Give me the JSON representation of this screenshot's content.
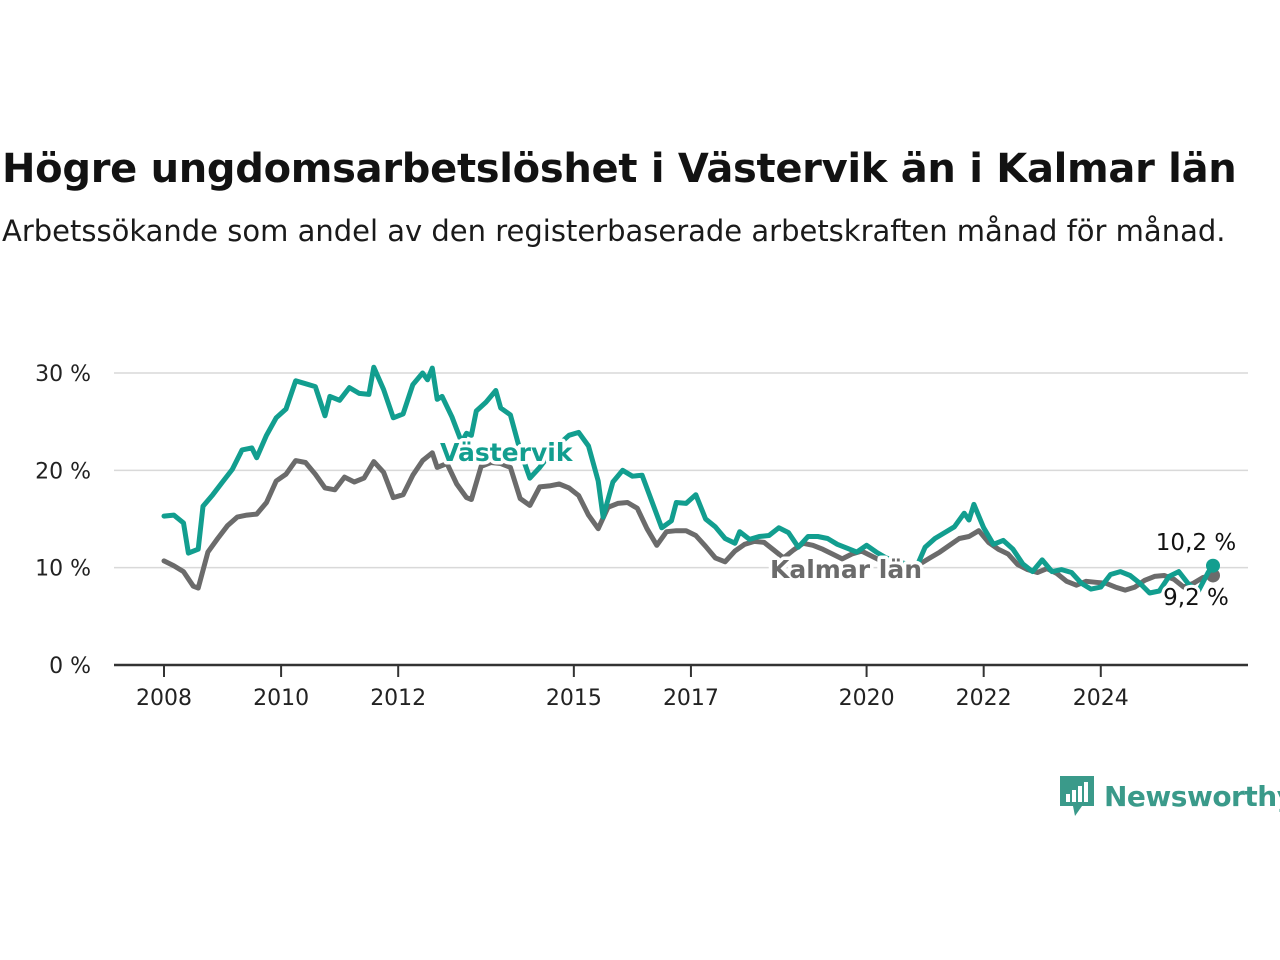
{
  "title": "Högre ungdomsarbetslöshet i Västervik än i Kalmar län",
  "subtitle": "Arbetssökande som andel av den registerbaserade arbetskraften månad för månad.",
  "brand": {
    "name": "Newsworthy",
    "color": "#3a9a8a"
  },
  "colors": {
    "vastervik": "#129e8f",
    "kalmar": "#6b6b6b",
    "grid": "#d9d9d9",
    "axis": "#333333"
  },
  "chart_data": {
    "type": "line",
    "title": "Högre ungdomsarbetslöshet i Västervik än i Kalmar län",
    "subtitle": "Arbetssökande som andel av den registerbaserade arbetskraften månad för månad.",
    "xlabel": "",
    "ylabel": "",
    "ylim": [
      0,
      30
    ],
    "xlim": [
      "2008-01",
      "2025-12"
    ],
    "grid": true,
    "y_ticks": [
      {
        "value": 0,
        "label": "0 %"
      },
      {
        "value": 10,
        "label": "10 %"
      },
      {
        "value": 20,
        "label": "20 %"
      },
      {
        "value": 30,
        "label": "30 %"
      }
    ],
    "x_ticks": [
      {
        "value": "2008-01",
        "label": "2008"
      },
      {
        "value": "2010-01",
        "label": "2010"
      },
      {
        "value": "2012-01",
        "label": "2012"
      },
      {
        "value": "2015-01",
        "label": "2015"
      },
      {
        "value": "2017-01",
        "label": "2017"
      },
      {
        "value": "2020-01",
        "label": "2020"
      },
      {
        "value": "2022-01",
        "label": "2022"
      },
      {
        "value": "2024-01",
        "label": "2024"
      }
    ],
    "series": [
      {
        "name": "Västervik",
        "color": "#129e8f",
        "end_label": "10,2 %",
        "points": [
          [
            "2008-01",
            15.3
          ],
          [
            "2008-03",
            15.4
          ],
          [
            "2008-05",
            14.6
          ],
          [
            "2008-06",
            11.5
          ],
          [
            "2008-08",
            11.9
          ],
          [
            "2008-09",
            16.3
          ],
          [
            "2008-11",
            17.5
          ],
          [
            "2009-01",
            18.8
          ],
          [
            "2009-03",
            20.1
          ],
          [
            "2009-05",
            22.1
          ],
          [
            "2009-07",
            22.3
          ],
          [
            "2009-08",
            21.3
          ],
          [
            "2009-10",
            23.6
          ],
          [
            "2009-12",
            25.4
          ],
          [
            "2010-02",
            26.3
          ],
          [
            "2010-04",
            29.2
          ],
          [
            "2010-06",
            28.9
          ],
          [
            "2010-08",
            28.6
          ],
          [
            "2010-10",
            25.6
          ],
          [
            "2010-11",
            27.6
          ],
          [
            "2011-01",
            27.2
          ],
          [
            "2011-03",
            28.5
          ],
          [
            "2011-05",
            27.9
          ],
          [
            "2011-07",
            27.8
          ],
          [
            "2011-08",
            30.6
          ],
          [
            "2011-10",
            28.3
          ],
          [
            "2011-12",
            25.4
          ],
          [
            "2012-02",
            25.8
          ],
          [
            "2012-04",
            28.8
          ],
          [
            "2012-06",
            30.0
          ],
          [
            "2012-07",
            29.3
          ],
          [
            "2012-08",
            30.5
          ],
          [
            "2012-09",
            27.3
          ],
          [
            "2012-10",
            27.6
          ],
          [
            "2012-12",
            25.5
          ],
          [
            "2013-02",
            22.9
          ],
          [
            "2013-03",
            23.8
          ],
          [
            "2013-04",
            23.6
          ],
          [
            "2013-05",
            26.1
          ],
          [
            "2013-07",
            27.0
          ],
          [
            "2013-09",
            28.2
          ],
          [
            "2013-10",
            26.4
          ],
          [
            "2013-12",
            25.7
          ],
          [
            "2014-02",
            22.0
          ],
          [
            "2014-04",
            19.2
          ],
          [
            "2014-06",
            20.3
          ],
          [
            "2014-08",
            21.6
          ],
          [
            "2014-10",
            22.7
          ],
          [
            "2014-12",
            23.6
          ],
          [
            "2015-02",
            23.9
          ],
          [
            "2015-04",
            22.5
          ],
          [
            "2015-06",
            18.9
          ],
          [
            "2015-07",
            15.2
          ],
          [
            "2015-09",
            18.8
          ],
          [
            "2015-11",
            20.0
          ],
          [
            "2016-01",
            19.4
          ],
          [
            "2016-03",
            19.5
          ],
          [
            "2016-05",
            16.8
          ],
          [
            "2016-07",
            14.1
          ],
          [
            "2016-09",
            14.8
          ],
          [
            "2016-10",
            16.7
          ],
          [
            "2016-12",
            16.6
          ],
          [
            "2017-02",
            17.5
          ],
          [
            "2017-04",
            15.0
          ],
          [
            "2017-06",
            14.2
          ],
          [
            "2017-08",
            13.0
          ],
          [
            "2017-10",
            12.5
          ],
          [
            "2017-11",
            13.7
          ],
          [
            "2018-01",
            12.9
          ],
          [
            "2018-03",
            13.2
          ],
          [
            "2018-05",
            13.3
          ],
          [
            "2018-07",
            14.1
          ],
          [
            "2018-09",
            13.6
          ],
          [
            "2018-11",
            12.1
          ],
          [
            "2019-01",
            13.2
          ],
          [
            "2019-03",
            13.2
          ],
          [
            "2019-05",
            13.0
          ],
          [
            "2019-07",
            12.4
          ],
          [
            "2019-09",
            12.0
          ],
          [
            "2019-11",
            11.6
          ],
          [
            "2020-01",
            12.3
          ],
          [
            "2020-03",
            11.6
          ],
          [
            "2020-05",
            11.0
          ],
          [
            "2020-07",
            10.7
          ],
          [
            "2020-09",
            10.4
          ],
          [
            "2020-11",
            9.8
          ],
          [
            "2021-01",
            12.1
          ],
          [
            "2021-03",
            13.0
          ],
          [
            "2021-05",
            13.6
          ],
          [
            "2021-07",
            14.2
          ],
          [
            "2021-09",
            15.6
          ],
          [
            "2021-10",
            14.9
          ],
          [
            "2021-11",
            16.5
          ],
          [
            "2022-01",
            14.1
          ],
          [
            "2022-03",
            12.4
          ],
          [
            "2022-05",
            12.8
          ],
          [
            "2022-07",
            11.9
          ],
          [
            "2022-09",
            10.4
          ],
          [
            "2022-11",
            9.6
          ],
          [
            "2023-01",
            10.8
          ],
          [
            "2023-03",
            9.6
          ],
          [
            "2023-05",
            9.8
          ],
          [
            "2023-07",
            9.5
          ],
          [
            "2023-09",
            8.4
          ],
          [
            "2023-11",
            7.8
          ],
          [
            "2024-01",
            8.0
          ],
          [
            "2024-03",
            9.3
          ],
          [
            "2024-05",
            9.6
          ],
          [
            "2024-07",
            9.2
          ],
          [
            "2024-09",
            8.4
          ],
          [
            "2024-11",
            7.4
          ],
          [
            "2025-01",
            7.6
          ],
          [
            "2025-03",
            9.1
          ],
          [
            "2025-05",
            9.6
          ],
          [
            "2025-07",
            8.3
          ],
          [
            "2025-09",
            7.6
          ],
          [
            "2025-11",
            9.5
          ],
          [
            "2025-12",
            10.2
          ]
        ]
      },
      {
        "name": "Kalmar län",
        "color": "#6b6b6b",
        "end_label": "9,2 %",
        "points": [
          [
            "2008-01",
            10.7
          ],
          [
            "2008-03",
            10.2
          ],
          [
            "2008-05",
            9.6
          ],
          [
            "2008-07",
            8.1
          ],
          [
            "2008-08",
            7.9
          ],
          [
            "2008-10",
            11.6
          ],
          [
            "2008-12",
            13.0
          ],
          [
            "2009-02",
            14.3
          ],
          [
            "2009-04",
            15.2
          ],
          [
            "2009-06",
            15.4
          ],
          [
            "2009-08",
            15.5
          ],
          [
            "2009-10",
            16.7
          ],
          [
            "2009-12",
            18.9
          ],
          [
            "2010-02",
            19.6
          ],
          [
            "2010-04",
            21.0
          ],
          [
            "2010-06",
            20.8
          ],
          [
            "2010-08",
            19.6
          ],
          [
            "2010-10",
            18.2
          ],
          [
            "2010-12",
            18.0
          ],
          [
            "2011-02",
            19.3
          ],
          [
            "2011-04",
            18.8
          ],
          [
            "2011-06",
            19.2
          ],
          [
            "2011-08",
            20.9
          ],
          [
            "2011-10",
            19.8
          ],
          [
            "2011-12",
            17.2
          ],
          [
            "2012-02",
            17.5
          ],
          [
            "2012-04",
            19.5
          ],
          [
            "2012-06",
            21.0
          ],
          [
            "2012-08",
            21.8
          ],
          [
            "2012-09",
            20.3
          ],
          [
            "2012-11",
            20.7
          ],
          [
            "2013-01",
            18.6
          ],
          [
            "2013-03",
            17.2
          ],
          [
            "2013-04",
            17.0
          ],
          [
            "2013-06",
            20.4
          ],
          [
            "2013-08",
            20.8
          ],
          [
            "2013-10",
            20.7
          ],
          [
            "2013-12",
            20.3
          ],
          [
            "2014-02",
            17.1
          ],
          [
            "2014-04",
            16.4
          ],
          [
            "2014-06",
            18.3
          ],
          [
            "2014-08",
            18.4
          ],
          [
            "2014-10",
            18.6
          ],
          [
            "2014-12",
            18.2
          ],
          [
            "2015-02",
            17.4
          ],
          [
            "2015-04",
            15.4
          ],
          [
            "2015-06",
            14.0
          ],
          [
            "2015-08",
            16.2
          ],
          [
            "2015-10",
            16.6
          ],
          [
            "2015-12",
            16.7
          ],
          [
            "2016-02",
            16.1
          ],
          [
            "2016-04",
            14.0
          ],
          [
            "2016-06",
            12.3
          ],
          [
            "2016-08",
            13.7
          ],
          [
            "2016-10",
            13.8
          ],
          [
            "2016-12",
            13.8
          ],
          [
            "2017-02",
            13.3
          ],
          [
            "2017-04",
            12.2
          ],
          [
            "2017-06",
            11.0
          ],
          [
            "2017-08",
            10.6
          ],
          [
            "2017-10",
            11.7
          ],
          [
            "2017-12",
            12.4
          ],
          [
            "2018-02",
            12.7
          ],
          [
            "2018-04",
            12.6
          ],
          [
            "2018-06",
            11.8
          ],
          [
            "2018-08",
            11.0
          ],
          [
            "2018-10",
            11.8
          ],
          [
            "2018-12",
            12.5
          ],
          [
            "2019-02",
            12.3
          ],
          [
            "2019-04",
            11.9
          ],
          [
            "2019-06",
            11.4
          ],
          [
            "2019-08",
            10.9
          ],
          [
            "2019-10",
            11.4
          ],
          [
            "2019-12",
            11.7
          ],
          [
            "2020-02",
            11.2
          ],
          [
            "2020-04",
            10.7
          ],
          [
            "2020-06",
            10.3
          ],
          [
            "2020-08",
            9.9
          ],
          [
            "2020-10",
            10.0
          ],
          [
            "2020-12",
            10.4
          ],
          [
            "2021-02",
            11.0
          ],
          [
            "2021-04",
            11.6
          ],
          [
            "2021-06",
            12.3
          ],
          [
            "2021-08",
            13.0
          ],
          [
            "2021-10",
            13.2
          ],
          [
            "2021-12",
            13.8
          ],
          [
            "2022-02",
            12.6
          ],
          [
            "2022-04",
            11.9
          ],
          [
            "2022-06",
            11.4
          ],
          [
            "2022-08",
            10.3
          ],
          [
            "2022-10",
            9.8
          ],
          [
            "2022-12",
            9.5
          ],
          [
            "2023-02",
            9.9
          ],
          [
            "2023-04",
            9.4
          ],
          [
            "2023-06",
            8.6
          ],
          [
            "2023-08",
            8.2
          ],
          [
            "2023-10",
            8.6
          ],
          [
            "2023-12",
            8.5
          ],
          [
            "2024-02",
            8.4
          ],
          [
            "2024-04",
            8.0
          ],
          [
            "2024-06",
            7.7
          ],
          [
            "2024-08",
            8.0
          ],
          [
            "2024-10",
            8.7
          ],
          [
            "2024-12",
            9.1
          ],
          [
            "2025-02",
            9.2
          ],
          [
            "2025-04",
            8.8
          ],
          [
            "2025-06",
            8.0
          ],
          [
            "2025-08",
            8.4
          ],
          [
            "2025-10",
            9.0
          ],
          [
            "2025-12",
            9.2
          ]
        ]
      }
    ]
  }
}
